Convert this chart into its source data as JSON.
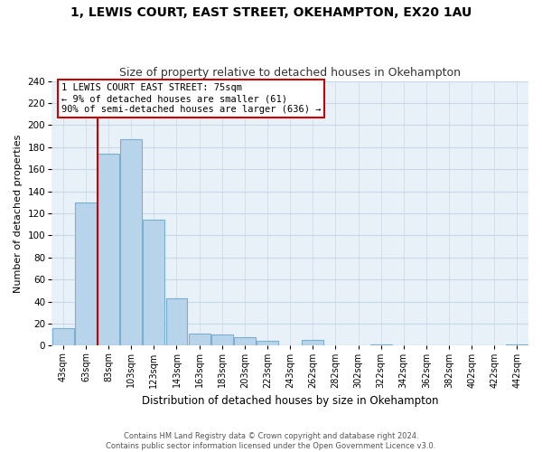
{
  "title": "1, LEWIS COURT, EAST STREET, OKEHAMPTON, EX20 1AU",
  "subtitle": "Size of property relative to detached houses in Okehampton",
  "xlabel": "Distribution of detached houses by size in Okehampton",
  "ylabel": "Number of detached properties",
  "bar_labels": [
    "43sqm",
    "63sqm",
    "83sqm",
    "103sqm",
    "123sqm",
    "143sqm",
    "163sqm",
    "183sqm",
    "203sqm",
    "223sqm",
    "243sqm",
    "262sqm",
    "282sqm",
    "302sqm",
    "322sqm",
    "342sqm",
    "362sqm",
    "382sqm",
    "402sqm",
    "422sqm",
    "442sqm"
  ],
  "bar_heights": [
    16,
    130,
    174,
    187,
    114,
    43,
    11,
    10,
    8,
    4,
    0,
    5,
    0,
    0,
    1,
    0,
    0,
    0,
    0,
    0,
    1
  ],
  "bar_color": "#b8d4ea",
  "bar_edge_color": "#7aafd4",
  "vline_x": 1.5,
  "vline_color": "#cc0000",
  "ylim": [
    0,
    240
  ],
  "yticks": [
    0,
    20,
    40,
    60,
    80,
    100,
    120,
    140,
    160,
    180,
    200,
    220,
    240
  ],
  "annotation_title": "1 LEWIS COURT EAST STREET: 75sqm",
  "annotation_line1": "← 9% of detached houses are smaller (61)",
  "annotation_line2": "90% of semi-detached houses are larger (636) →",
  "annotation_box_color": "#ffffff",
  "annotation_box_edge": "#cc0000",
  "footer_line1": "Contains HM Land Registry data © Crown copyright and database right 2024.",
  "footer_line2": "Contains public sector information licensed under the Open Government Licence v3.0.",
  "bg_color": "#ffffff",
  "grid_color": "#c8d8e8",
  "title_fontsize": 10,
  "subtitle_fontsize": 9,
  "ax_bg_color": "#e8f0f8"
}
